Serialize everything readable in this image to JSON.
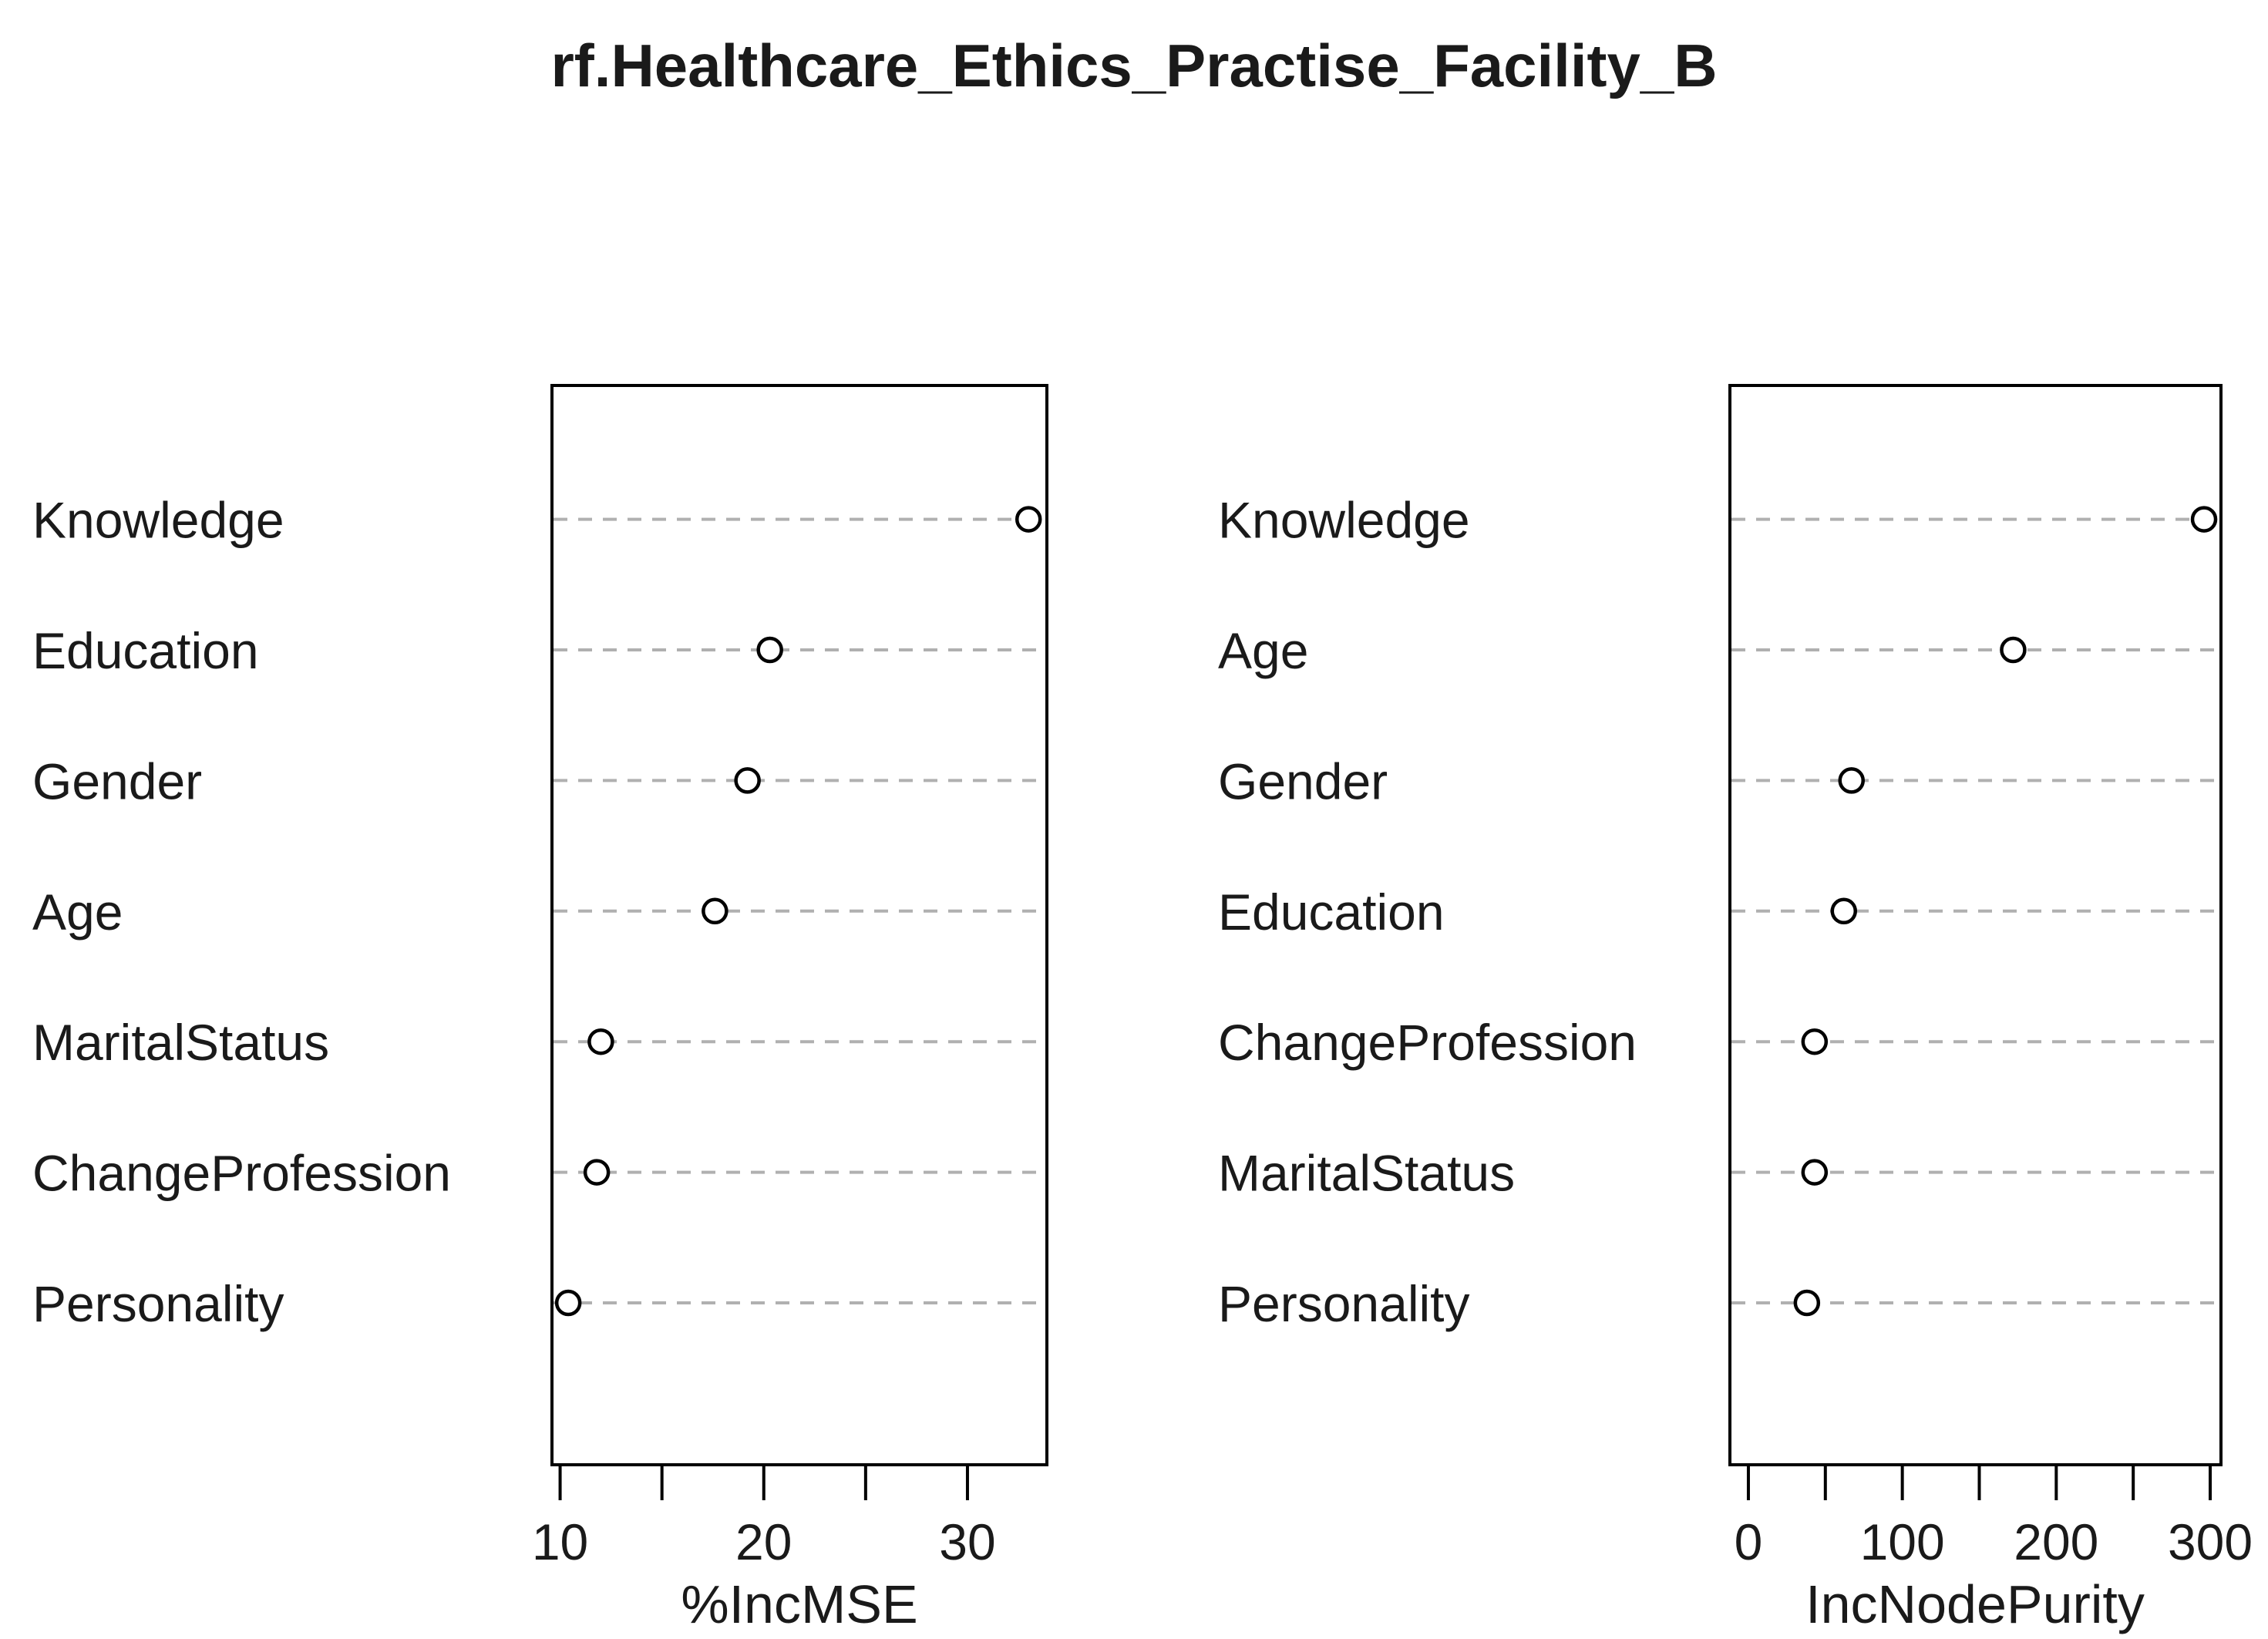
{
  "title": "rf.Healthcare_Ethics_Practise_Facility_B",
  "colors": {
    "background": "#ffffff",
    "text": "#1a1a1a",
    "grid": "#b0b0b0",
    "point_stroke": "#000000",
    "point_fill": "#ffffff"
  },
  "chart_data": [
    {
      "type": "scatter",
      "subtype": "dot-chart",
      "xlabel": "%IncMSE",
      "categories_top_to_bottom": [
        "Knowledge",
        "Education",
        "Gender",
        "Age",
        "MaritalStatus",
        "ChangeProfession",
        "Personality"
      ],
      "values": [
        33.0,
        20.3,
        19.2,
        17.6,
        12.0,
        11.8,
        10.4
      ],
      "xlim": [
        9.6,
        33.9
      ],
      "ticks": [
        10,
        15,
        20,
        25,
        30
      ],
      "tick_labels": [
        "10",
        "",
        "20",
        "",
        "30"
      ],
      "grid": "dashed horizontal",
      "legend": "none"
    },
    {
      "type": "scatter",
      "subtype": "dot-chart",
      "xlabel": "IncNodePurity",
      "categories_top_to_bottom": [
        "Knowledge",
        "Age",
        "Gender",
        "Education",
        "ChangeProfession",
        "MaritalStatus",
        "Personality"
      ],
      "values": [
        296,
        172,
        67,
        62,
        43,
        43,
        38
      ],
      "xlim": [
        -12,
        307
      ],
      "ticks": [
        0,
        50,
        100,
        150,
        200,
        250,
        300
      ],
      "tick_labels": [
        "0",
        "",
        "100",
        "",
        "200",
        "",
        "300"
      ],
      "grid": "dashed horizontal",
      "legend": "none"
    }
  ]
}
